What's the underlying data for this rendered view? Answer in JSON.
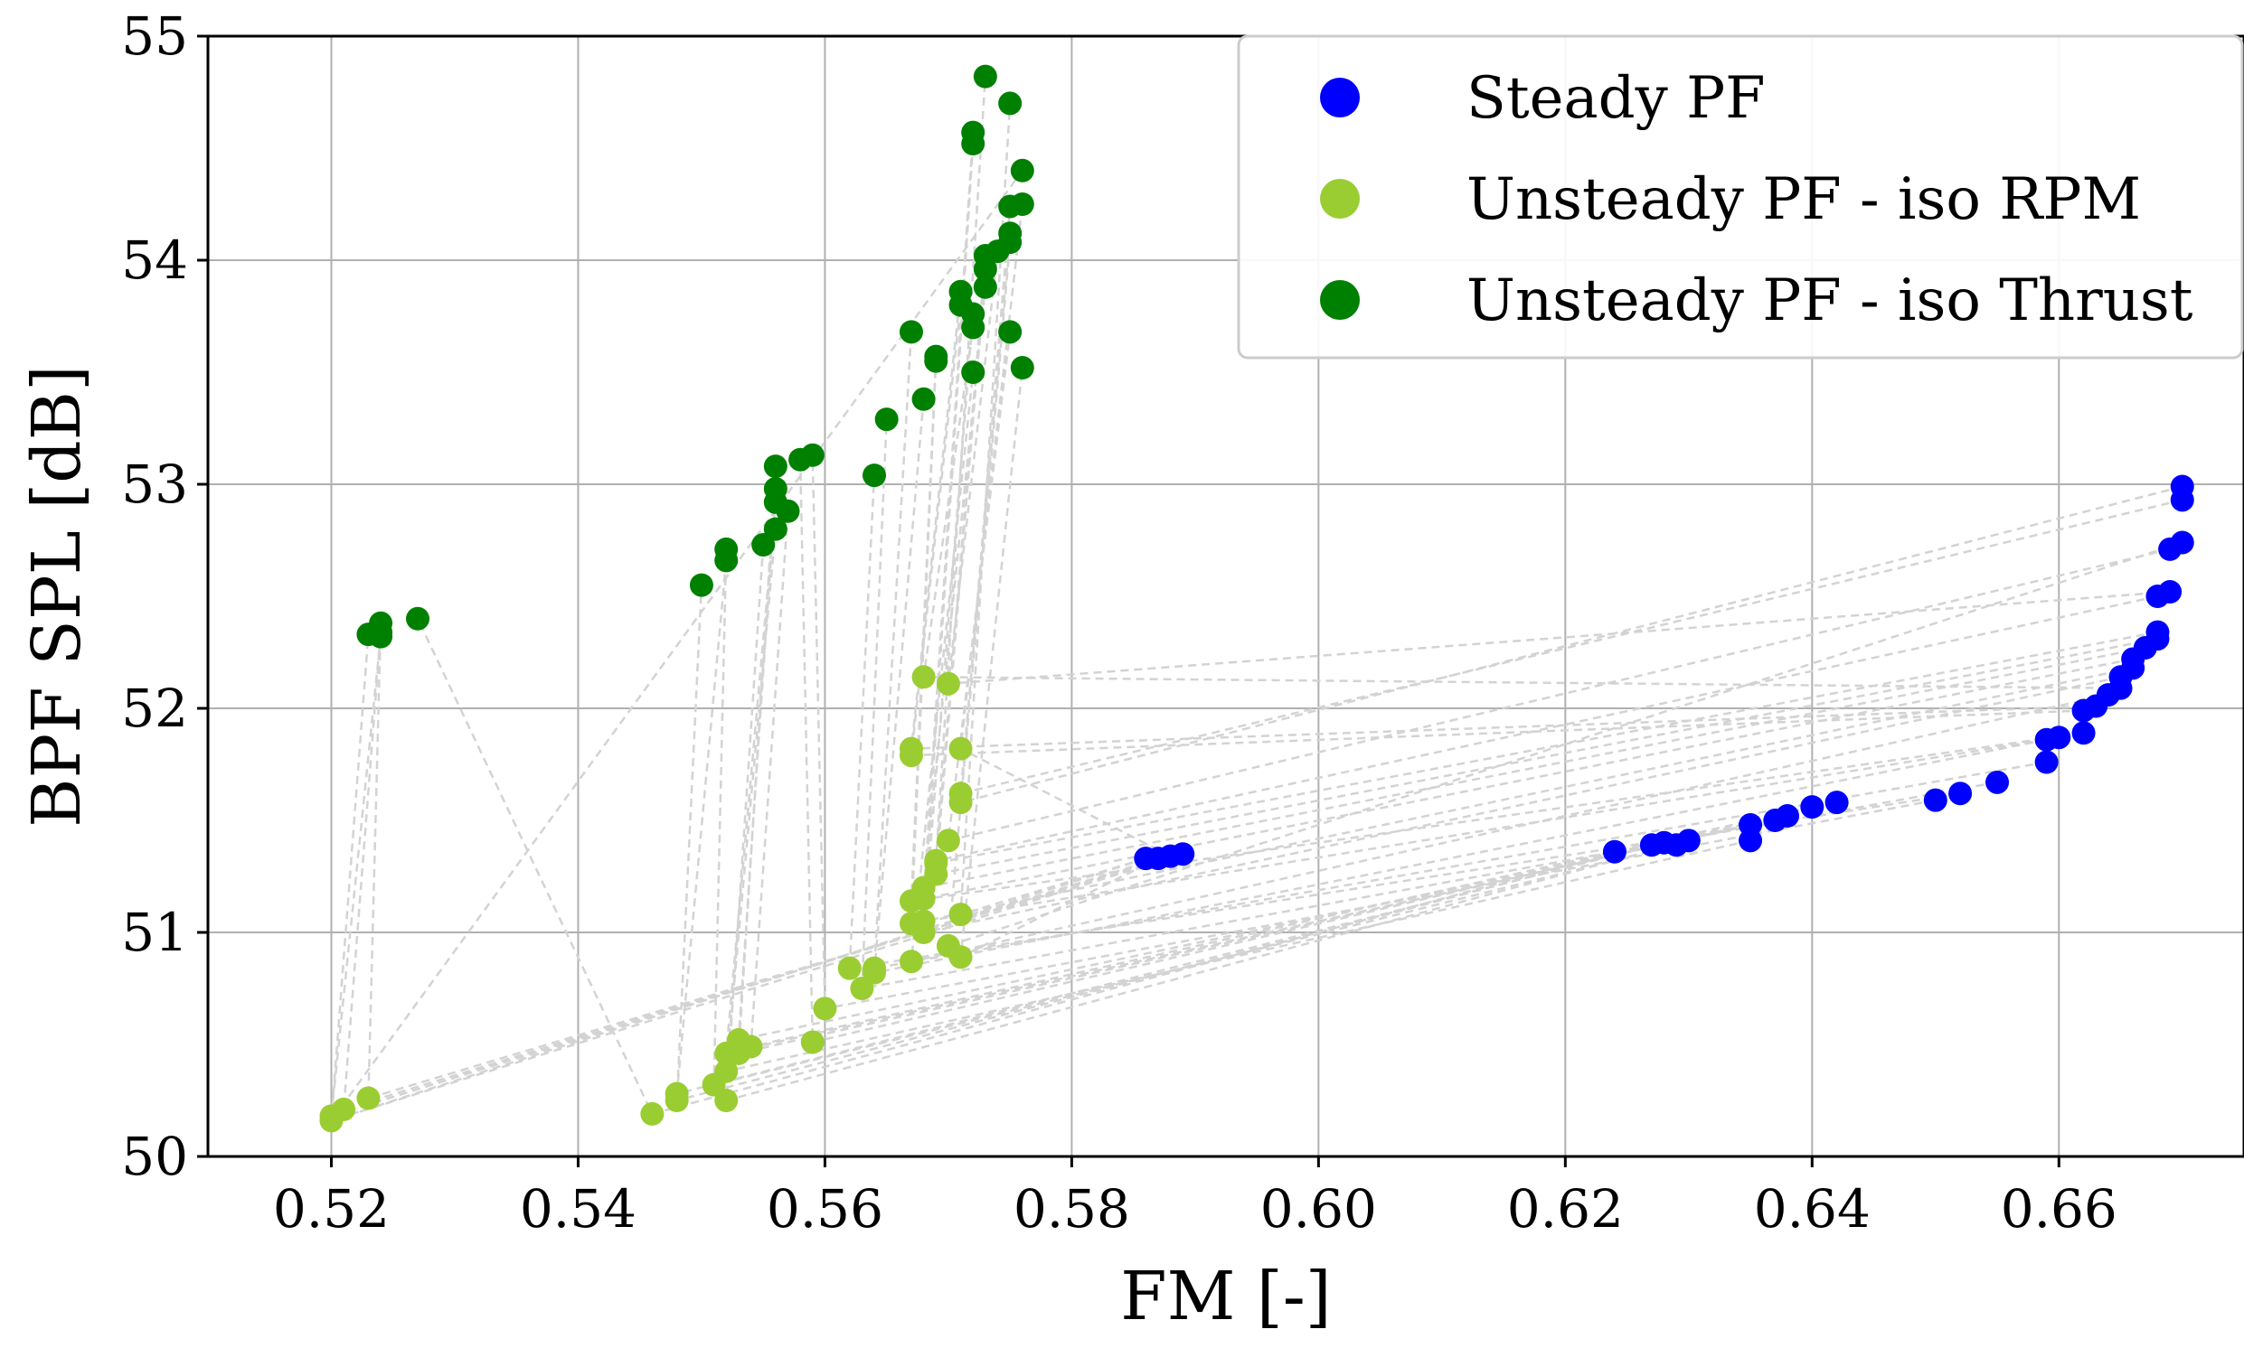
{
  "chart_data": {
    "type": "scatter",
    "title": "",
    "xlabel": "FM [-]",
    "ylabel": "BPF SPL [dB]",
    "xlim": [
      0.51,
      0.675
    ],
    "ylim": [
      50,
      55
    ],
    "xticks": [
      "0.52",
      "0.54",
      "0.56",
      "0.58",
      "0.60",
      "0.62",
      "0.64",
      "0.66"
    ],
    "yticks": [
      "50",
      "51",
      "52",
      "53",
      "54",
      "55"
    ],
    "grid": true,
    "legend_position": "top-right",
    "connector_color": "#d3d3d3",
    "series": [
      {
        "name": "Steady PF",
        "color": "#0000ff",
        "points": [
          [
            0.586,
            51.33
          ],
          [
            0.587,
            51.33
          ],
          [
            0.588,
            51.34
          ],
          [
            0.589,
            51.35
          ],
          [
            0.624,
            51.36
          ],
          [
            0.627,
            51.39
          ],
          [
            0.628,
            51.4
          ],
          [
            0.629,
            51.39
          ],
          [
            0.63,
            51.41
          ],
          [
            0.635,
            51.41
          ],
          [
            0.635,
            51.48
          ],
          [
            0.637,
            51.5
          ],
          [
            0.638,
            51.52
          ],
          [
            0.64,
            51.56
          ],
          [
            0.642,
            51.58
          ],
          [
            0.65,
            51.59
          ],
          [
            0.652,
            51.62
          ],
          [
            0.655,
            51.67
          ],
          [
            0.659,
            51.76
          ],
          [
            0.659,
            51.86
          ],
          [
            0.66,
            51.87
          ],
          [
            0.662,
            51.89
          ],
          [
            0.662,
            51.99
          ],
          [
            0.663,
            52.01
          ],
          [
            0.664,
            52.06
          ],
          [
            0.665,
            52.09
          ],
          [
            0.665,
            52.14
          ],
          [
            0.666,
            52.18
          ],
          [
            0.666,
            52.22
          ],
          [
            0.667,
            52.27
          ],
          [
            0.668,
            52.31
          ],
          [
            0.668,
            52.34
          ],
          [
            0.668,
            52.5
          ],
          [
            0.669,
            52.52
          ],
          [
            0.669,
            52.71
          ],
          [
            0.67,
            52.74
          ],
          [
            0.67,
            52.93
          ],
          [
            0.67,
            52.99
          ]
        ]
      },
      {
        "name": "Unsteady PF - iso RPM",
        "color": "#9acd32",
        "points": [
          [
            0.52,
            50.16
          ],
          [
            0.52,
            50.18
          ],
          [
            0.521,
            50.21
          ],
          [
            0.523,
            50.26
          ],
          [
            0.546,
            50.19
          ],
          [
            0.548,
            50.25
          ],
          [
            0.548,
            50.28
          ],
          [
            0.551,
            50.32
          ],
          [
            0.552,
            50.25
          ],
          [
            0.552,
            50.38
          ],
          [
            0.552,
            50.46
          ],
          [
            0.553,
            50.52
          ],
          [
            0.553,
            50.46
          ],
          [
            0.554,
            50.49
          ],
          [
            0.559,
            50.51
          ],
          [
            0.56,
            50.66
          ],
          [
            0.562,
            50.84
          ],
          [
            0.563,
            50.75
          ],
          [
            0.564,
            50.84
          ],
          [
            0.564,
            50.82
          ],
          [
            0.567,
            51.04
          ],
          [
            0.567,
            51.14
          ],
          [
            0.567,
            51.79
          ],
          [
            0.567,
            51.82
          ],
          [
            0.567,
            50.87
          ],
          [
            0.568,
            52.14
          ],
          [
            0.568,
            51.0
          ],
          [
            0.568,
            51.05
          ],
          [
            0.568,
            51.15
          ],
          [
            0.568,
            51.2
          ],
          [
            0.569,
            51.26
          ],
          [
            0.569,
            51.31
          ],
          [
            0.569,
            51.32
          ],
          [
            0.57,
            52.11
          ],
          [
            0.57,
            51.41
          ],
          [
            0.57,
            50.94
          ],
          [
            0.571,
            51.62
          ],
          [
            0.571,
            51.58
          ],
          [
            0.571,
            51.08
          ],
          [
            0.571,
            50.89
          ],
          [
            0.571,
            51.82
          ]
        ]
      },
      {
        "name": "Unsteady PF - iso Thrust",
        "color": "#008000",
        "points": [
          [
            0.523,
            52.33
          ],
          [
            0.524,
            52.32
          ],
          [
            0.524,
            52.34
          ],
          [
            0.524,
            52.38
          ],
          [
            0.527,
            52.4
          ],
          [
            0.55,
            52.55
          ],
          [
            0.552,
            52.66
          ],
          [
            0.552,
            52.71
          ],
          [
            0.555,
            52.73
          ],
          [
            0.556,
            52.8
          ],
          [
            0.556,
            52.92
          ],
          [
            0.556,
            52.98
          ],
          [
            0.556,
            53.08
          ],
          [
            0.557,
            52.88
          ],
          [
            0.558,
            53.11
          ],
          [
            0.559,
            53.13
          ],
          [
            0.564,
            53.04
          ],
          [
            0.565,
            53.29
          ],
          [
            0.567,
            53.68
          ],
          [
            0.568,
            53.38
          ],
          [
            0.569,
            53.55
          ],
          [
            0.569,
            53.57
          ],
          [
            0.571,
            53.8
          ],
          [
            0.571,
            53.86
          ],
          [
            0.572,
            53.5
          ],
          [
            0.572,
            53.7
          ],
          [
            0.572,
            53.76
          ],
          [
            0.572,
            54.52
          ],
          [
            0.572,
            54.57
          ],
          [
            0.573,
            53.88
          ],
          [
            0.573,
            53.96
          ],
          [
            0.573,
            54.02
          ],
          [
            0.573,
            54.82
          ],
          [
            0.574,
            54.04
          ],
          [
            0.575,
            53.68
          ],
          [
            0.575,
            54.08
          ],
          [
            0.575,
            54.12
          ],
          [
            0.575,
            54.24
          ],
          [
            0.575,
            54.7
          ],
          [
            0.576,
            53.52
          ],
          [
            0.576,
            54.25
          ],
          [
            0.576,
            54.4
          ]
        ]
      }
    ]
  }
}
